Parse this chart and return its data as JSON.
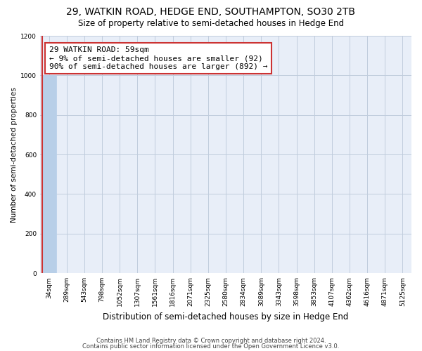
{
  "title": "29, WATKIN ROAD, HEDGE END, SOUTHAMPTON, SO30 2TB",
  "subtitle": "Size of property relative to semi-detached houses in Hedge End",
  "xlabel": "Distribution of semi-detached houses by size in Hedge End",
  "ylabel": "Number of semi-detached properties",
  "bin_labels": [
    "34sqm",
    "289sqm",
    "543sqm",
    "798sqm",
    "1052sqm",
    "1307sqm",
    "1561sqm",
    "1816sqm",
    "2071sqm",
    "2325sqm",
    "2580sqm",
    "2834sqm",
    "3089sqm",
    "3343sqm",
    "3598sqm",
    "3853sqm",
    "4107sqm",
    "4362sqm",
    "4616sqm",
    "4871sqm",
    "5125sqm"
  ],
  "bar_values": [
    1000,
    0,
    0,
    0,
    0,
    0,
    0,
    0,
    0,
    0,
    0,
    0,
    0,
    0,
    0,
    0,
    0,
    0,
    0,
    0,
    0
  ],
  "bar_color": "#b8cfe8",
  "subject_line_color": "#cc3333",
  "annotation_text": "29 WATKIN ROAD: 59sqm\n← 9% of semi-detached houses are smaller (92)\n90% of semi-detached houses are larger (892) →",
  "annotation_box_color": "#cc3333",
  "ylim": [
    0,
    1200
  ],
  "yticks": [
    0,
    200,
    400,
    600,
    800,
    1000,
    1200
  ],
  "footer_line1": "Contains HM Land Registry data © Crown copyright and database right 2024.",
  "footer_line2": "Contains public sector information licensed under the Open Government Licence v3.0.",
  "background_color": "#e8eef8",
  "grid_color": "#c0ccdd",
  "title_fontsize": 10,
  "subtitle_fontsize": 8.5,
  "tick_fontsize": 6.5,
  "ylabel_fontsize": 7.5,
  "xlabel_fontsize": 8.5,
  "annotation_fontsize": 8,
  "footer_fontsize": 6
}
